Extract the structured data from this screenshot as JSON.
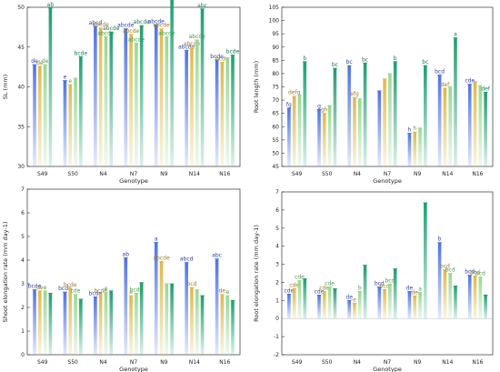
{
  "series_colors": [
    "#4d72e8",
    "#e0b84a",
    "#98d890",
    "#1e9e6e"
  ],
  "genotypes": [
    "S49",
    "S50",
    "N4",
    "N7",
    "N9",
    "N14",
    "N16"
  ],
  "chart_data": [
    {
      "type": "bar",
      "xlabel": "Genotype",
      "ylabel": "SL (mm)",
      "ylim": [
        30,
        50
      ],
      "yticks": [
        30,
        35,
        40,
        45,
        50
      ],
      "categories": [
        "S49",
        "S50",
        "N4",
        "N7",
        "N9",
        "N14",
        "N16"
      ],
      "series": [
        {
          "values": [
            42.8,
            40.8,
            47.6,
            47.3,
            47.8,
            44.6,
            43.4
          ]
        },
        {
          "values": [
            42.6,
            40.3,
            47.4,
            46.6,
            47.3,
            45.0,
            43.1
          ]
        },
        {
          "values": [
            42.8,
            41.1,
            46.3,
            45.5,
            46.3,
            45.9,
            43.7
          ]
        },
        {
          "values": [
            49.9,
            43.8,
            46.9,
            47.7,
            51.3,
            49.8,
            44.0
          ]
        }
      ],
      "labels": [
        [
          "de",
          "de",
          "de",
          "ab"
        ],
        [
          "e",
          "e",
          "",
          "bcde"
        ],
        [
          "abcd",
          "abcde",
          "abcde",
          "abcde"
        ],
        [
          "abcde",
          "abcde",
          "abcde",
          "abcde"
        ],
        [
          "abcde",
          "abcde",
          "abcde",
          "a"
        ],
        [
          "abcde",
          "abcde",
          "abcde",
          "abc"
        ],
        [
          "bcde",
          "bcde",
          "",
          "bcde"
        ]
      ]
    },
    {
      "type": "bar",
      "xlabel": "Genotype",
      "ylabel": "Root length (mm)",
      "ylim": [
        45,
        105
      ],
      "yticks": [
        45,
        50,
        55,
        60,
        65,
        70,
        75,
        80,
        85,
        90,
        95,
        100,
        105
      ],
      "categories": [
        "S49",
        "S50",
        "N4",
        "N7",
        "N9",
        "N14",
        "N16"
      ],
      "series": [
        {
          "values": [
            67.0,
            66.5,
            83.0,
            73.5,
            57.5,
            79.5,
            76.0
          ]
        },
        {
          "values": [
            71.5,
            65.0,
            71.0,
            78.0,
            58.0,
            74.5,
            77.0
          ]
        },
        {
          "values": [
            72.0,
            68.0,
            70.5,
            80.0,
            59.5,
            75.0,
            75.5
          ]
        },
        {
          "values": [
            84.5,
            82.0,
            84.0,
            84.5,
            83.0,
            93.5,
            73.0
          ]
        }
      ],
      "labels": [
        [
          "fg",
          "defg",
          "",
          "b"
        ],
        [
          "g",
          "gh",
          "",
          "bc"
        ],
        [
          "bc",
          "efg",
          "",
          "bc"
        ],
        [
          "",
          "",
          "",
          "b"
        ],
        [
          "h",
          "h",
          "",
          "bc"
        ],
        [
          "bcd",
          "def",
          "",
          "a"
        ],
        [
          "cde",
          "",
          "",
          "def"
        ]
      ]
    },
    {
      "type": "bar",
      "xlabel": "Genotype",
      "ylabel": "Shoot elongation rate (mm day-1)",
      "ylim": [
        0,
        7
      ],
      "yticks": [
        0,
        1,
        2,
        3,
        4,
        5,
        6,
        7
      ],
      "categories": [
        "S49",
        "S50",
        "N4",
        "N7",
        "N9",
        "N14",
        "N16"
      ],
      "series": [
        {
          "values": [
            2.75,
            2.65,
            2.45,
            4.1,
            4.75,
            3.9,
            4.05
          ]
        },
        {
          "values": [
            2.7,
            2.8,
            2.55,
            2.5,
            3.95,
            2.85,
            2.55
          ]
        },
        {
          "values": [
            2.7,
            2.55,
            2.65,
            2.6,
            3.0,
            2.75,
            2.5
          ]
        },
        {
          "values": [
            2.6,
            2.35,
            2.7,
            3.05,
            3.0,
            2.5,
            2.3
          ]
        }
      ],
      "labels": [
        [
          "bcde",
          "de",
          "e",
          ""
        ],
        [
          "bcde",
          "bcde",
          "cde",
          ""
        ],
        [
          "bcde",
          "bcde",
          "e",
          ""
        ],
        [
          "ab",
          "e",
          "bcde",
          ""
        ],
        [
          "a",
          "abcde",
          "",
          ""
        ],
        [
          "abcd",
          "bcd",
          "",
          ""
        ],
        [
          "abc",
          "de",
          "e",
          ""
        ]
      ]
    },
    {
      "type": "bar",
      "xlabel": "Genotype",
      "ylabel": "Root elongation rate (mm day-1)",
      "ylim": [
        -2,
        7
      ],
      "yticks": [
        -2,
        -1,
        0,
        1,
        2,
        3,
        4,
        5,
        6,
        7
      ],
      "categories": [
        "S49",
        "S50",
        "N4",
        "N7",
        "N9",
        "N14",
        "N16"
      ],
      "series": [
        {
          "values": [
            1.35,
            1.3,
            1.0,
            1.75,
            1.5,
            4.2,
            2.4
          ]
        },
        {
          "values": [
            1.65,
            1.5,
            0.85,
            1.6,
            1.25,
            2.7,
            2.35
          ]
        },
        {
          "values": [
            2.1,
            1.75,
            1.5,
            1.9,
            1.45,
            2.5,
            2.3
          ]
        },
        {
          "values": [
            2.2,
            1.65,
            2.95,
            2.75,
            6.4,
            1.8,
            1.3
          ]
        }
      ],
      "labels": [
        [
          "cde",
          "cde",
          "cde",
          ""
        ],
        [
          "cde",
          "cde",
          "cde",
          ""
        ],
        [
          "de",
          "e",
          "b",
          ""
        ],
        [
          "bcd",
          "bcd",
          "bcd",
          ""
        ],
        [
          "de",
          "de",
          "a",
          ""
        ],
        [
          "b",
          "bcd",
          "bcd",
          ""
        ],
        [
          "bcd",
          "bcd",
          "bcd",
          ""
        ]
      ]
    }
  ]
}
